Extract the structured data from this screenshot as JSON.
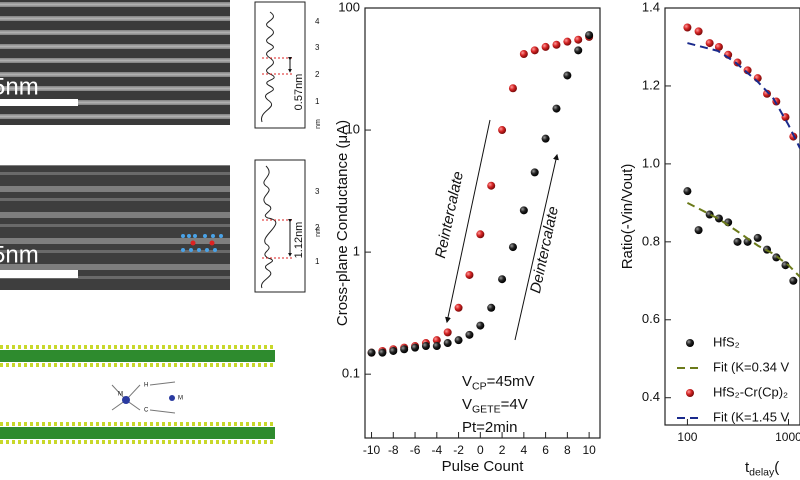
{
  "panels": {
    "top_image": {
      "scale_bar": "5nm",
      "spacing": "0.57nm",
      "profile_ticks": [
        4,
        3,
        2,
        1
      ],
      "profile_unit": "nm"
    },
    "middle_image": {
      "scale_bar": "5nm",
      "spacing": "1.12nm",
      "profile_ticks": [
        3,
        2,
        1
      ],
      "profile_unit": "nm"
    },
    "structure_labels": [
      "M",
      "H",
      "C",
      "M"
    ]
  },
  "chart_data": [
    {
      "type": "scatter",
      "y_label": "Cross-plane Conductance (μA)",
      "x_label": "Pulse Count",
      "x": [
        -10,
        -9,
        -8,
        -7,
        -6,
        -5,
        -4,
        -3,
        -2,
        -1,
        0,
        1,
        2,
        3,
        4,
        5,
        6,
        7,
        8,
        9,
        10
      ],
      "xlim": [
        -10.6,
        11
      ],
      "xticks": [
        -10,
        -8,
        -6,
        -4,
        -2,
        0,
        2,
        4,
        6,
        8,
        10
      ],
      "ylim": [
        0.03,
        100
      ],
      "yscale": "log",
      "yticks": [
        0.1,
        1,
        10,
        100
      ],
      "series": [
        {
          "color": "#cc1f1f",
          "values": [
            0.15,
            0.155,
            0.16,
            0.165,
            0.17,
            0.18,
            0.19,
            0.22,
            0.35,
            0.65,
            1.4,
            3.5,
            10,
            22,
            42,
            45,
            48,
            50,
            53,
            55,
            58
          ]
        },
        {
          "color": "#111111",
          "values": [
            0.15,
            0.15,
            0.155,
            0.16,
            0.165,
            0.17,
            0.17,
            0.18,
            0.19,
            0.21,
            0.25,
            0.35,
            0.6,
            1.1,
            2.2,
            4.5,
            8.5,
            15,
            28,
            45,
            60
          ]
        }
      ],
      "annotations": [
        "Reintercalate",
        "Deintercalate"
      ],
      "conditions": [
        {
          "base": "V",
          "sub": "CP",
          "text": "=45mV"
        },
        {
          "base": "V",
          "sub": "GETE",
          "text": "=4V"
        },
        {
          "text": "Pt=2min"
        }
      ]
    },
    {
      "type": "scatter",
      "y_label": "Ratio(-Vin/Vout)",
      "x_label": {
        "base": "t",
        "sub": "delay",
        "text": "("
      },
      "xlim": [
        60,
        1300
      ],
      "xscale": "log",
      "xticks": [
        100,
        1000
      ],
      "ylim": [
        0.33,
        1.4
      ],
      "yticks": [
        0.4,
        0.6,
        {
          "value": 0.8,
          "label": "0.8"
        },
        {
          "value": 1.0,
          "label": "1.0"
        },
        1.2,
        1.4
      ],
      "legend": "lower left",
      "series": [
        {
          "name": "HfS₂",
          "color": "#111111",
          "marker": "circle",
          "x": [
            100,
            129,
            166,
            205,
            253,
            313,
            394,
            496,
            613,
            758,
            934,
            1117
          ],
          "values": [
            0.93,
            0.83,
            0.87,
            0.86,
            0.85,
            0.8,
            0.8,
            0.81,
            0.78,
            0.76,
            0.74,
            0.7
          ]
        },
        {
          "name": "Fit (K=0.34 V",
          "color": "#6b7a1a",
          "line": "dashed",
          "x": [
            100,
            200,
            300,
            500,
            700,
            1000,
            1300
          ],
          "values": [
            0.9,
            0.86,
            0.83,
            0.79,
            0.77,
            0.74,
            0.71
          ]
        },
        {
          "name": "HfS₂-Cr(Cp)₂",
          "color": "#cc1f1f",
          "marker": "circle",
          "x": [
            100,
            129,
            166,
            205,
            253,
            313,
            394,
            496,
            613,
            758,
            934,
            1117
          ],
          "values": [
            1.35,
            1.34,
            1.31,
            1.3,
            1.28,
            1.26,
            1.24,
            1.22,
            1.18,
            1.16,
            1.12,
            1.07
          ]
        },
        {
          "name": "Fit (K=1.45 V",
          "color": "#1a2a8c",
          "line": "dashed",
          "x": [
            100,
            200,
            300,
            500,
            700,
            1000,
            1300
          ],
          "values": [
            1.31,
            1.29,
            1.26,
            1.21,
            1.17,
            1.1,
            1.04
          ]
        }
      ]
    }
  ]
}
